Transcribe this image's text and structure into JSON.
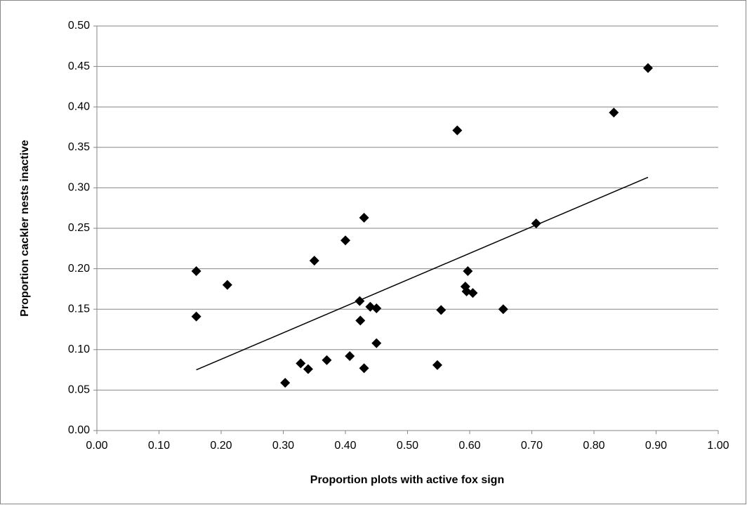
{
  "chart_data": {
    "type": "scatter",
    "x_label": "Proportion plots with active fox sign",
    "y_label": "Proportion cackler nests inactive",
    "xlim": [
      0,
      1
    ],
    "ylim": [
      0,
      0.5
    ],
    "xticks": [
      {
        "value": 0,
        "label": "0.00"
      },
      {
        "value": 0.1,
        "label": "0.10"
      },
      {
        "value": 0.2,
        "label": "0.20"
      },
      {
        "value": 0.3,
        "label": "0.30"
      },
      {
        "value": 0.4,
        "label": "0.40"
      },
      {
        "value": 0.5,
        "label": "0.50"
      },
      {
        "value": 0.6,
        "label": "0.60"
      },
      {
        "value": 0.7,
        "label": "0.70"
      },
      {
        "value": 0.8,
        "label": "0.80"
      },
      {
        "value": 0.9,
        "label": "0.90"
      },
      {
        "value": 1,
        "label": "1.00"
      }
    ],
    "yticks": [
      {
        "value": 0,
        "label": "0.00"
      },
      {
        "value": 0.05,
        "label": "0.05"
      },
      {
        "value": 0.1,
        "label": "0.10"
      },
      {
        "value": 0.15,
        "label": "0.15"
      },
      {
        "value": 0.2,
        "label": "0.20"
      },
      {
        "value": 0.25,
        "label": "0.25"
      },
      {
        "value": 0.3,
        "label": "0.30"
      },
      {
        "value": 0.35,
        "label": "0.35"
      },
      {
        "value": 0.4,
        "label": "0.40"
      },
      {
        "value": 0.45,
        "label": "0.45"
      },
      {
        "value": 0.5,
        "label": "0.50"
      }
    ],
    "grid": true,
    "color": "#000000",
    "x": [
      0.16,
      0.16,
      0.21,
      0.303,
      0.328,
      0.34,
      0.35,
      0.37,
      0.4,
      0.407,
      0.423,
      0.424,
      0.43,
      0.43,
      0.44,
      0.45,
      0.45,
      0.548,
      0.554,
      0.58,
      0.593,
      0.595,
      0.597,
      0.605,
      0.654,
      0.707,
      0.832,
      0.887
    ],
    "y": [
      0.197,
      0.141,
      0.18,
      0.059,
      0.083,
      0.076,
      0.21,
      0.087,
      0.235,
      0.092,
      0.16,
      0.136,
      0.263,
      0.077,
      0.153,
      0.151,
      0.108,
      0.081,
      0.149,
      0.371,
      0.178,
      0.172,
      0.197,
      0.17,
      0.15,
      0.256,
      0.393,
      0.448
    ],
    "trendline": {
      "x": [
        0.16,
        0.887
      ],
      "y": [
        0.075,
        0.313
      ]
    }
  }
}
